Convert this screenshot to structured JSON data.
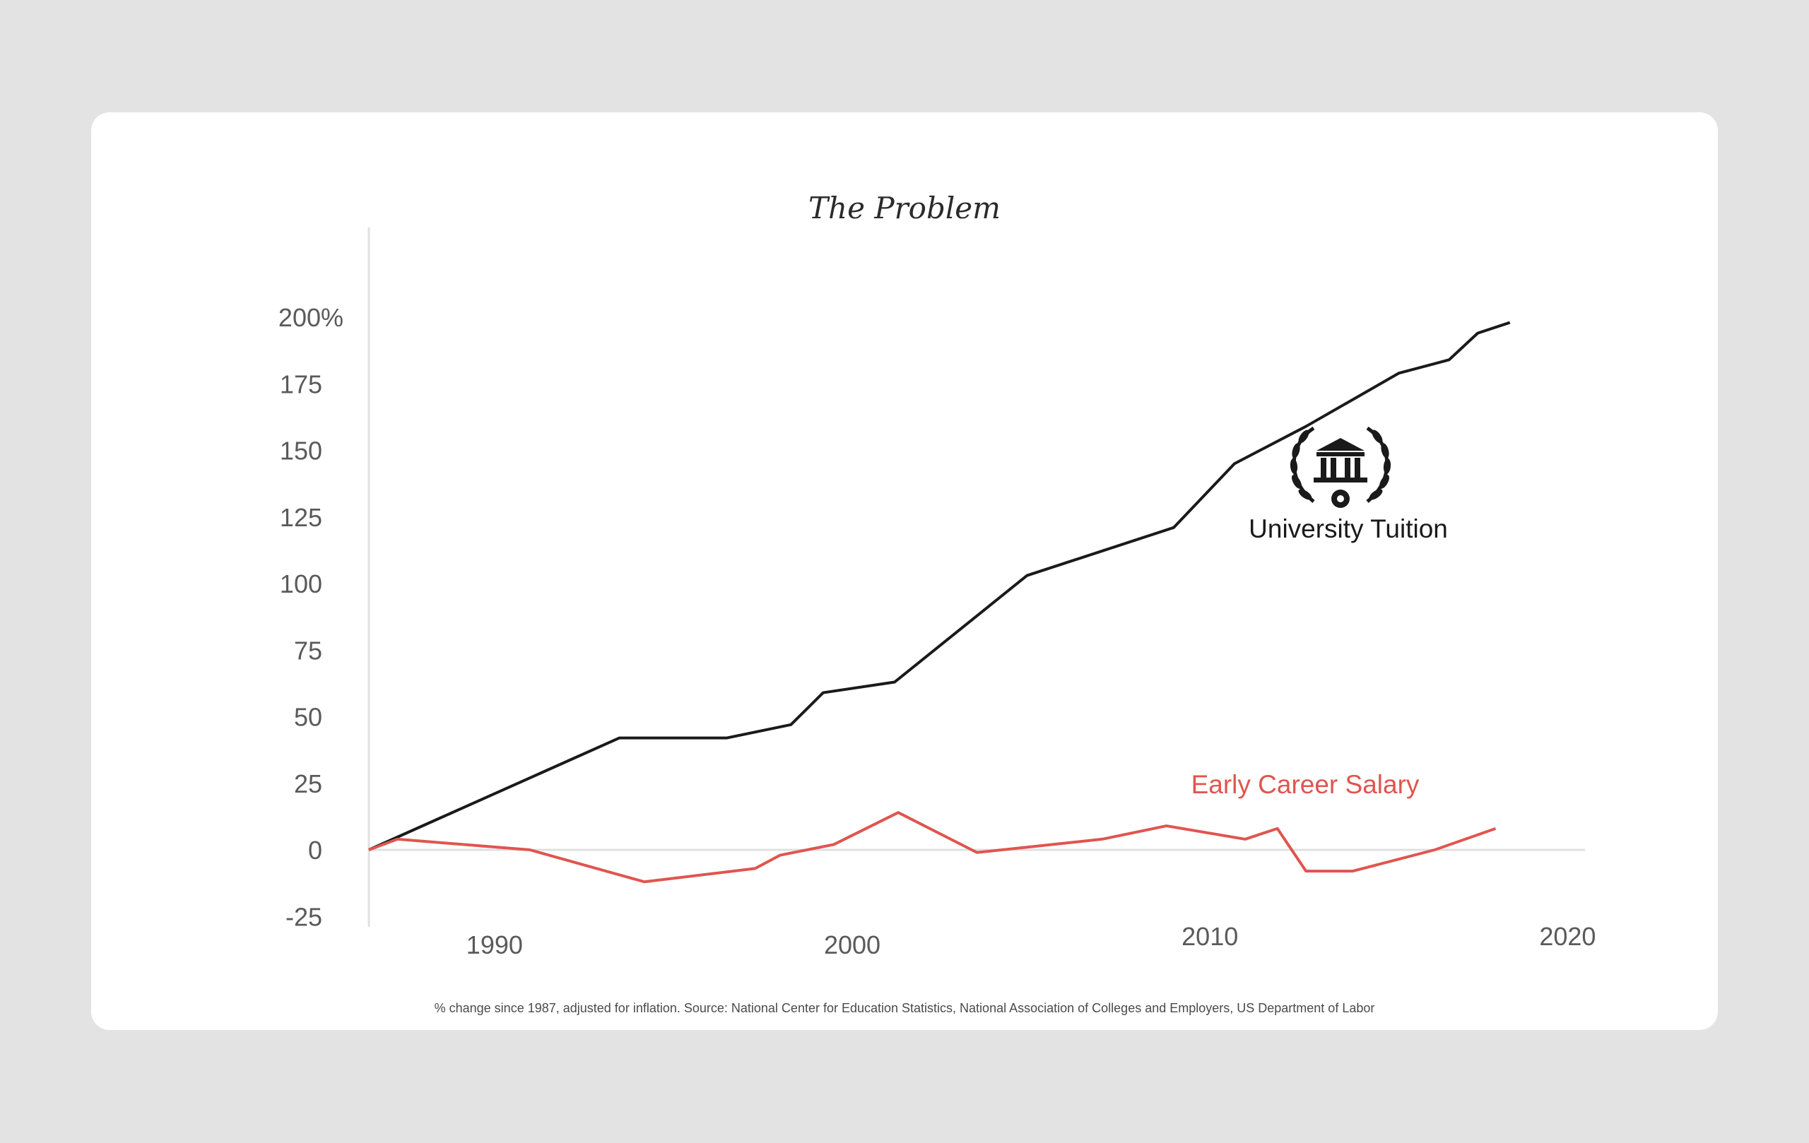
{
  "chart_data": {
    "type": "line",
    "title": "The Problem",
    "xlabel": "",
    "ylabel": "",
    "xlim": [
      1987,
      2021
    ],
    "ylim": [
      -25,
      200
    ],
    "x_ticks": [
      {
        "value": 1990,
        "label": "1990"
      },
      {
        "value": 2000,
        "label": "2000"
      },
      {
        "value": 2010,
        "label": "2010"
      },
      {
        "value": 2020,
        "label": "2020"
      }
    ],
    "y_ticks": [
      {
        "value": 200,
        "label": "200%"
      },
      {
        "value": 175,
        "label": "175"
      },
      {
        "value": 150,
        "label": "150"
      },
      {
        "value": 125,
        "label": "125"
      },
      {
        "value": 100,
        "label": "100"
      },
      {
        "value": 75,
        "label": "75"
      },
      {
        "value": 50,
        "label": "50"
      },
      {
        "value": 25,
        "label": "25"
      },
      {
        "value": 0,
        "label": "0"
      },
      {
        "value": -25,
        "label": "-25"
      }
    ],
    "grid": false,
    "series": [
      {
        "name": "University Tuition",
        "color": "#1a1a1a",
        "icon": "university-laurel-icon",
        "points": [
          [
            1987,
            0
          ],
          [
            1989,
            12
          ],
          [
            1994,
            42
          ],
          [
            1997,
            42
          ],
          [
            1998.8,
            47
          ],
          [
            1999.7,
            59
          ],
          [
            2001.7,
            63
          ],
          [
            2005.4,
            103
          ],
          [
            2009.5,
            121
          ],
          [
            2011.2,
            145
          ],
          [
            2013.2,
            159
          ],
          [
            2015.8,
            179
          ],
          [
            2017.2,
            184
          ],
          [
            2018,
            194
          ],
          [
            2018.9,
            198
          ]
        ]
      },
      {
        "name": "Early Career Salary",
        "color": "#e0554f",
        "points": [
          [
            1987,
            0
          ],
          [
            1987.8,
            4
          ],
          [
            1991.5,
            0
          ],
          [
            1994.7,
            -12
          ],
          [
            1997.8,
            -7
          ],
          [
            1998.5,
            -2
          ],
          [
            2000,
            2
          ],
          [
            2001.8,
            14
          ],
          [
            2004,
            -1
          ],
          [
            2007.5,
            4
          ],
          [
            2009.3,
            9
          ],
          [
            2011.5,
            4
          ],
          [
            2012.4,
            8
          ],
          [
            2013.2,
            -8
          ],
          [
            2014.5,
            -8
          ],
          [
            2016.8,
            0
          ],
          [
            2018.5,
            8
          ]
        ]
      }
    ],
    "footnote": "% change since 1987, adjusted for inflation. Source: National Center for Education Statistics, National Association of Colleges and Employers, US Department of Labor"
  }
}
